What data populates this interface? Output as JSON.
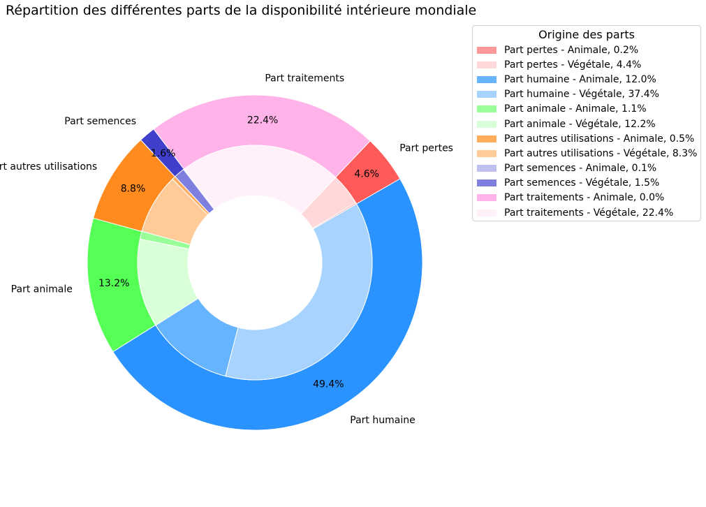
{
  "title": "Répartition des différentes parts de la disponibilité intérieure mondiale",
  "chart_data": {
    "type": "pie",
    "style": "nested-donut",
    "title": "Répartition des différentes parts de la disponibilité intérieure mondiale",
    "legend": {
      "title": "Origine des parts",
      "placement": "top-right"
    },
    "outer": {
      "categories": [
        "Part pertes",
        "Part traitements",
        "Part semences",
        "Part autres utilisations",
        "Part animale",
        "Part humaine"
      ],
      "values": [
        4.6,
        22.4,
        1.6,
        8.8,
        13.2,
        49.4
      ],
      "labels_pct": [
        "4.6%",
        "22.4%",
        "1.6%",
        "8.8%",
        "13.2%",
        "49.4%"
      ],
      "colors": [
        "#ff5a5a",
        "#ffb3e8",
        "#3f3fcc",
        "#ff8b1f",
        "#55ff55",
        "#2a93ff"
      ]
    },
    "inner": {
      "categories": [
        "Part pertes - Animale",
        "Part pertes - Végétale",
        "Part traitements - Animale",
        "Part traitements - Végétale",
        "Part semences - Animale",
        "Part semences - Végétale",
        "Part autres utilisations - Animale",
        "Part autres utilisations - Végétale",
        "Part animale - Animale",
        "Part animale - Végétale",
        "Part humaine - Animale",
        "Part humaine - Végétale"
      ],
      "values": [
        0.2,
        4.4,
        0.0,
        22.4,
        0.1,
        1.5,
        0.5,
        8.3,
        1.1,
        12.2,
        12.0,
        37.4
      ],
      "colors": [
        "#ff9999",
        "#ffd9d9",
        "#ffb3e8",
        "#fff0fa",
        "#c0c0f0",
        "#7f7fdf",
        "#ffad5c",
        "#ffcc99",
        "#99ff99",
        "#d9ffd9",
        "#66b3ff",
        "#a8d3ff"
      ]
    },
    "legend_entries": [
      {
        "label": "Part pertes - Animale, 0.2%",
        "color": "#ff9999"
      },
      {
        "label": "Part pertes - Végétale, 4.4%",
        "color": "#ffd9d9"
      },
      {
        "label": "Part humaine - Animale, 12.0%",
        "color": "#66b3ff"
      },
      {
        "label": "Part humaine - Végétale, 37.4%",
        "color": "#a8d3ff"
      },
      {
        "label": "Part animale - Animale, 1.1%",
        "color": "#99ff99"
      },
      {
        "label": "Part animale - Végétale, 12.2%",
        "color": "#d9ffd9"
      },
      {
        "label": "Part autres utilisations - Animale, 0.5%",
        "color": "#ffad5c"
      },
      {
        "label": "Part autres utilisations - Végétale, 8.3%",
        "color": "#ffcc99"
      },
      {
        "label": "Part semences - Animale, 0.1%",
        "color": "#c0c0f0"
      },
      {
        "label": "Part semences - Végétale, 1.5%",
        "color": "#7f7fdf"
      },
      {
        "label": "Part traitements - Animale, 0.0%",
        "color": "#ffb3e8"
      },
      {
        "label": "Part traitements - Végétale, 22.4%",
        "color": "#fff0fa"
      }
    ]
  }
}
